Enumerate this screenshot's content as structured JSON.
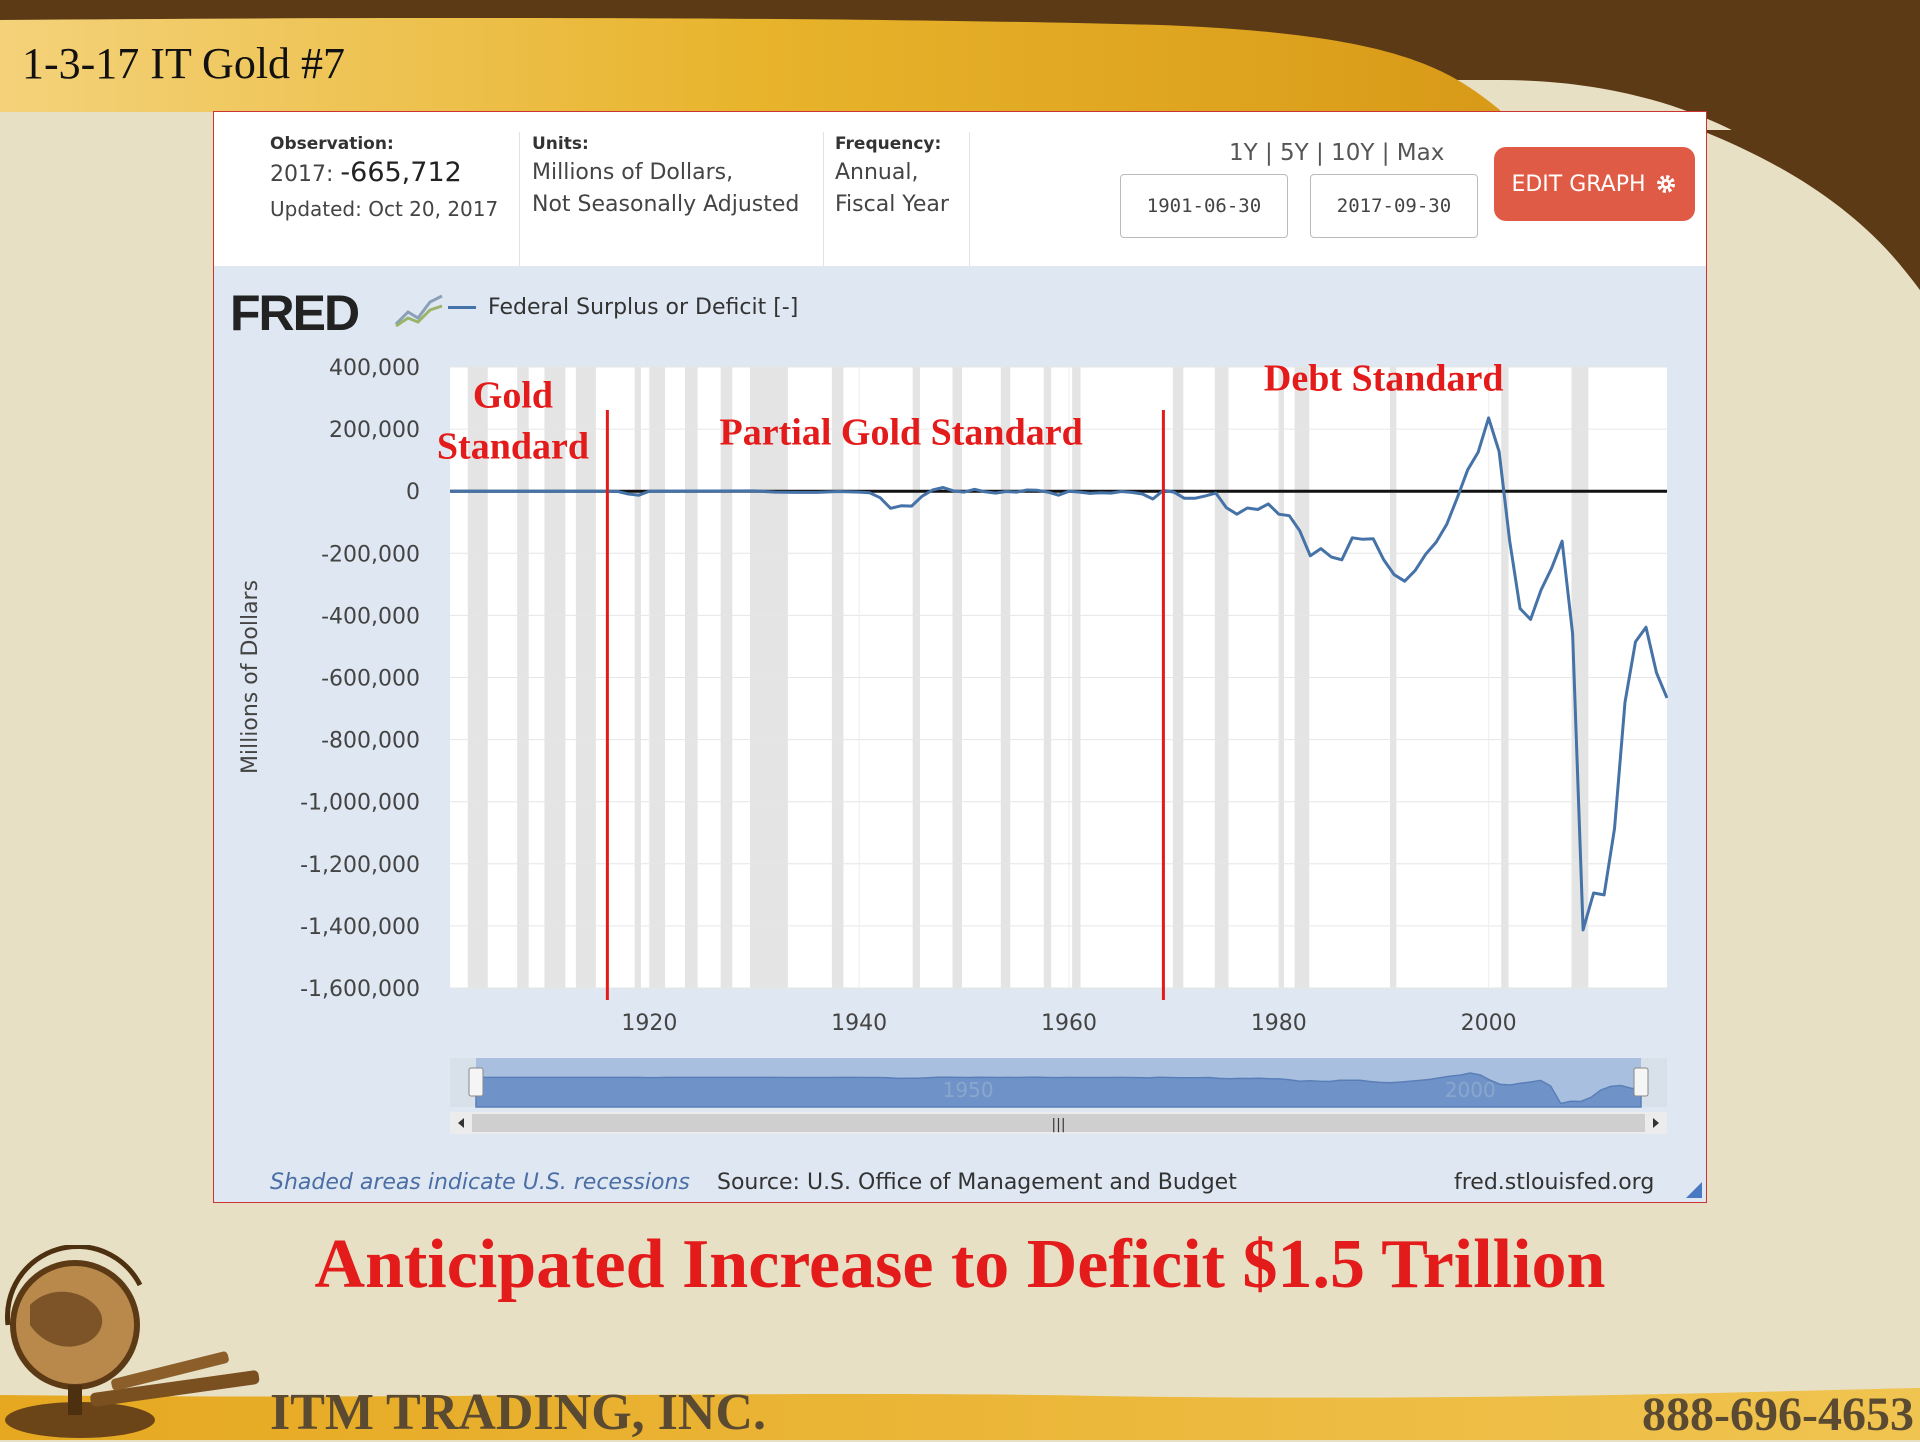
{
  "slide": {
    "title": "1-3-17 IT Gold #7",
    "headline": "Anticipated Increase to Deficit $1.5 Trillion",
    "company": "ITM TRADING, INC.",
    "phone": "888-696-4653"
  },
  "info": {
    "observation_label": "Observation:",
    "observation_year": "2017: ",
    "observation_value": "-665,712",
    "updated": "Updated: Oct 20, 2017",
    "units_label": "Units:",
    "units_line1": "Millions of Dollars,",
    "units_line2": "Not Seasonally Adjusted",
    "frequency_label": "Frequency:",
    "frequency_line1": "Annual,",
    "frequency_line2": "Fiscal Year",
    "range_links": "1Y | 5Y | 10Y | Max",
    "start_date": "1901-06-30",
    "end_date": "2017-09-30",
    "edit_button": "EDIT GRAPH"
  },
  "fred": {
    "logo": "FRED",
    "footer_recessions": "Shaded areas indicate U.S. recessions",
    "footer_source": "Source: U.S. Office of Management and Budget",
    "footer_url": "fred.stlouisfed.org"
  },
  "colors": {
    "series": "#4572a7",
    "annotation": "#e31b1b",
    "button": "#e05b45",
    "recession": "#e4e4e4"
  },
  "chart_data": {
    "type": "line",
    "ylabel": "Millions of Dollars",
    "ylim": [
      -1600000,
      400000
    ],
    "xlim": [
      1901,
      2017
    ],
    "y_ticks": [
      400000,
      200000,
      0,
      -200000,
      -400000,
      -600000,
      -800000,
      -1000000,
      -1200000,
      -1400000,
      -1600000
    ],
    "y_tick_labels": [
      "400,000",
      "200,000",
      "0",
      "-200,000",
      "-400,000",
      "-600,000",
      "-800,000",
      "-1,000,000",
      "-1,200,000",
      "-1,400,000",
      "-1,600,000"
    ],
    "x_ticks": [
      1920,
      1940,
      1960,
      1980,
      2000
    ],
    "x_tick_labels": [
      "1920",
      "1940",
      "1960",
      "1980",
      "2000"
    ],
    "navigator_labels": [
      "1950",
      "2000"
    ],
    "grid": true,
    "legend": "top-left",
    "series": [
      {
        "name": "Federal Surplus or Deficit [-]",
        "points": [
          [
            1901,
            0
          ],
          [
            1916,
            0
          ],
          [
            1917,
            -1000
          ],
          [
            1918,
            -9000
          ],
          [
            1919,
            -13000
          ],
          [
            1920,
            0
          ],
          [
            1930,
            1000
          ],
          [
            1932,
            -3000
          ],
          [
            1934,
            -4000
          ],
          [
            1936,
            -4000
          ],
          [
            1938,
            -1000
          ],
          [
            1940,
            -3000
          ],
          [
            1941,
            -5000
          ],
          [
            1942,
            -21000
          ],
          [
            1943,
            -55000
          ],
          [
            1944,
            -47000
          ],
          [
            1945,
            -48000
          ],
          [
            1946,
            -16000
          ],
          [
            1947,
            4000
          ],
          [
            1948,
            12000
          ],
          [
            1949,
            1000
          ],
          [
            1950,
            -3000
          ],
          [
            1951,
            6000
          ],
          [
            1952,
            -2000
          ],
          [
            1953,
            -6000
          ],
          [
            1954,
            -1000
          ],
          [
            1955,
            -3000
          ],
          [
            1956,
            4000
          ],
          [
            1957,
            3000
          ],
          [
            1958,
            -3000
          ],
          [
            1959,
            -13000
          ],
          [
            1960,
            0
          ],
          [
            1961,
            -3000
          ],
          [
            1962,
            -7000
          ],
          [
            1963,
            -5000
          ],
          [
            1964,
            -6000
          ],
          [
            1965,
            -1000
          ],
          [
            1966,
            -4000
          ],
          [
            1967,
            -9000
          ],
          [
            1968,
            -25000
          ],
          [
            1969,
            3000
          ],
          [
            1970,
            -3000
          ],
          [
            1971,
            -23000
          ],
          [
            1972,
            -23000
          ],
          [
            1973,
            -15000
          ],
          [
            1974,
            -6000
          ],
          [
            1975,
            -53000
          ],
          [
            1976,
            -74000
          ],
          [
            1977,
            -54000
          ],
          [
            1978,
            -59000
          ],
          [
            1979,
            -41000
          ],
          [
            1980,
            -74000
          ],
          [
            1981,
            -79000
          ],
          [
            1982,
            -128000
          ],
          [
            1983,
            -208000
          ],
          [
            1984,
            -185000
          ],
          [
            1985,
            -212000
          ],
          [
            1986,
            -221000
          ],
          [
            1987,
            -150000
          ],
          [
            1988,
            -155000
          ],
          [
            1989,
            -153000
          ],
          [
            1990,
            -221000
          ],
          [
            1991,
            -269000
          ],
          [
            1992,
            -290000
          ],
          [
            1993,
            -255000
          ],
          [
            1994,
            -203000
          ],
          [
            1995,
            -164000
          ],
          [
            1996,
            -107000
          ],
          [
            1997,
            -22000
          ],
          [
            1998,
            69000
          ],
          [
            1999,
            126000
          ],
          [
            2000,
            236000
          ],
          [
            2001,
            128000
          ],
          [
            2002,
            -158000
          ],
          [
            2003,
            -378000
          ],
          [
            2004,
            -413000
          ],
          [
            2005,
            -318000
          ],
          [
            2006,
            -248000
          ],
          [
            2007,
            -161000
          ],
          [
            2008,
            -459000
          ],
          [
            2009,
            -1413000
          ],
          [
            2010,
            -1294000
          ],
          [
            2011,
            -1300000
          ],
          [
            2012,
            -1087000
          ],
          [
            2013,
            -680000
          ],
          [
            2014,
            -485000
          ],
          [
            2015,
            -438000
          ],
          [
            2016,
            -585000
          ],
          [
            2017,
            -665712
          ]
        ]
      }
    ],
    "recessions": [
      [
        1902.7,
        1904.6
      ],
      [
        1907.4,
        1908.5
      ],
      [
        1910.0,
        1912.0
      ],
      [
        1913.0,
        1914.9
      ],
      [
        1918.6,
        1919.2
      ],
      [
        1920.0,
        1921.5
      ],
      [
        1923.4,
        1924.6
      ],
      [
        1926.8,
        1927.9
      ],
      [
        1929.6,
        1933.2
      ],
      [
        1937.4,
        1938.5
      ],
      [
        1945.1,
        1945.8
      ],
      [
        1948.9,
        1949.8
      ],
      [
        1953.5,
        1954.4
      ],
      [
        1957.6,
        1958.3
      ],
      [
        1960.3,
        1961.1
      ],
      [
        1969.9,
        1970.9
      ],
      [
        1973.9,
        1975.2
      ],
      [
        1980.0,
        1980.5
      ],
      [
        1981.5,
        1982.9
      ],
      [
        1990.6,
        1991.2
      ],
      [
        2001.2,
        2001.9
      ],
      [
        2007.9,
        2009.5
      ]
    ],
    "annotations": [
      {
        "text": "Gold",
        "year": 1907,
        "y": 270000
      },
      {
        "text": "Standard",
        "year": 1907,
        "y": 105000
      },
      {
        "text": "Partial Gold Standard",
        "year": 1944,
        "y": 150000
      },
      {
        "text": "Debt Standard",
        "year": 1990,
        "y": 325000
      }
    ],
    "markers": [
      1916,
      1969
    ]
  }
}
